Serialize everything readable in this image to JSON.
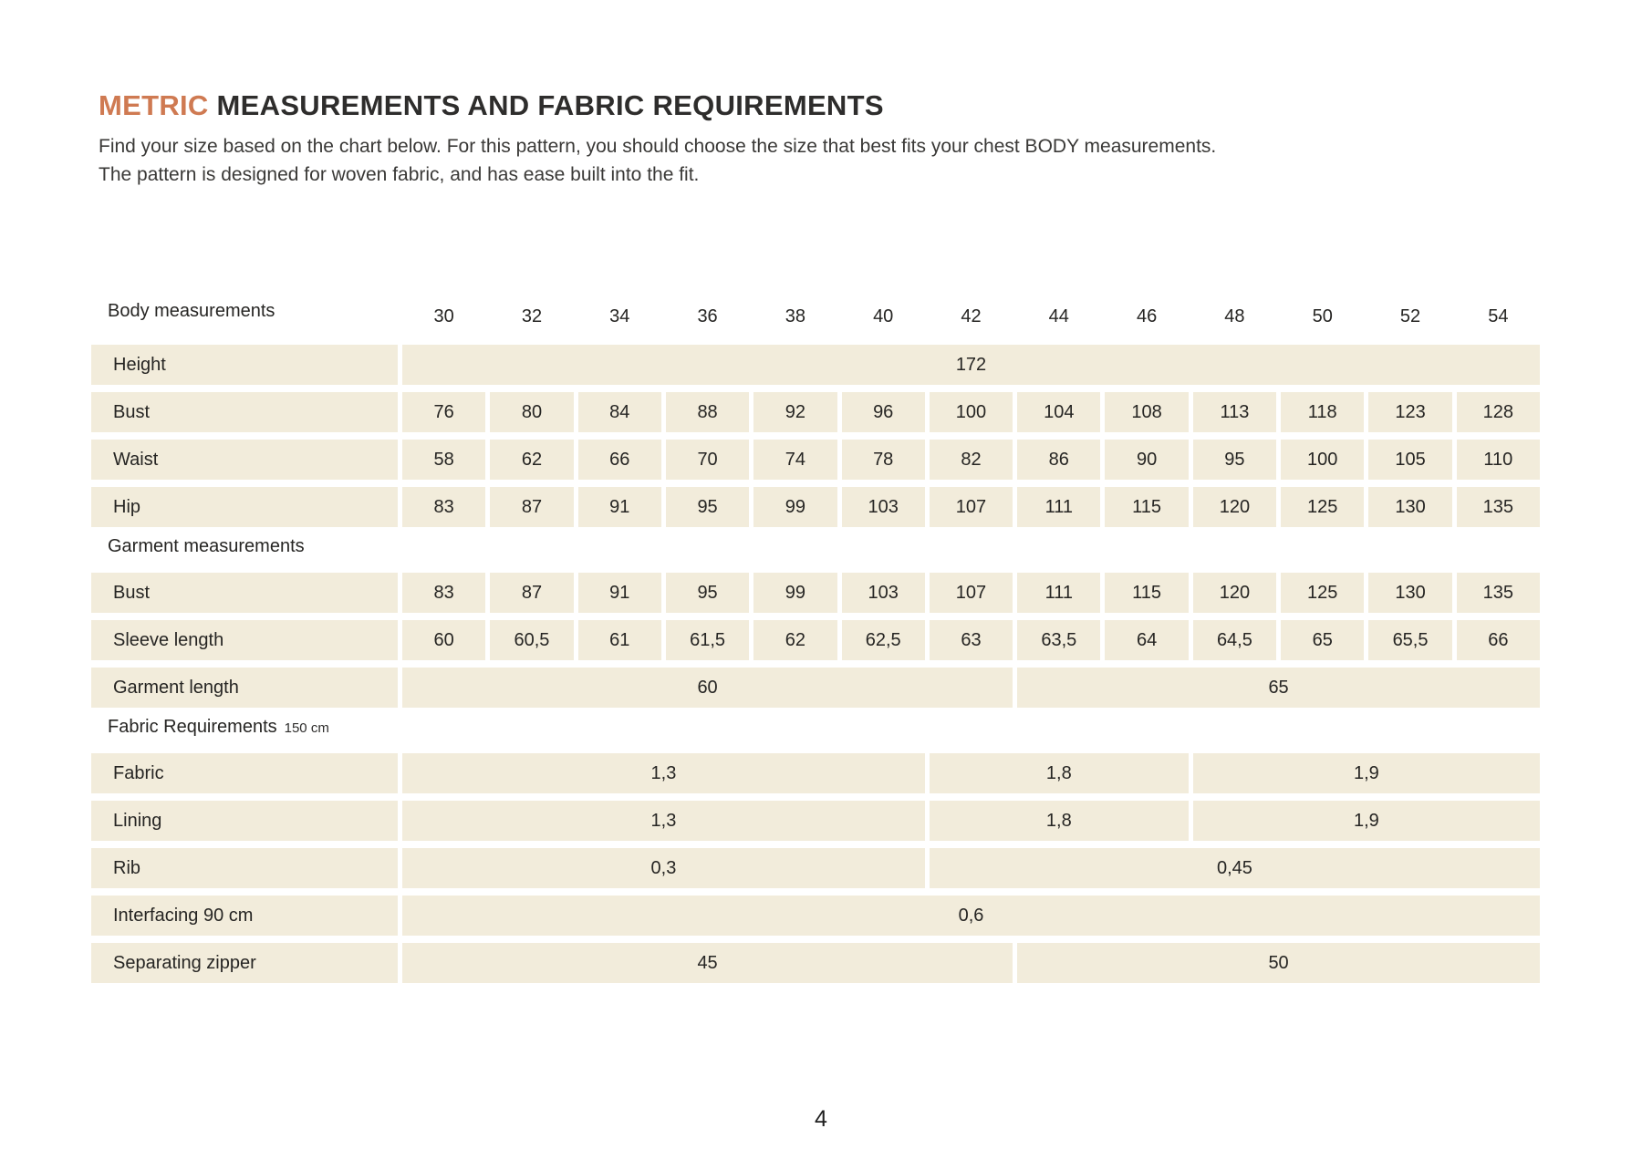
{
  "colors": {
    "accent": "#cf7a52",
    "cell_bg": "#f2ecdb",
    "text": "#2e2d2c"
  },
  "header": {
    "title_highlight": "METRIC",
    "title_rest": " MEASUREMENTS AND FABRIC REQUIREMENTS",
    "intro_line1": "Find your size based on the chart below. For this pattern, you should choose the size that best fits your chest BODY measurements.",
    "intro_line2": "The pattern is designed for woven fabric, and has ease built into the fit."
  },
  "table": {
    "sizes": [
      "30",
      "32",
      "34",
      "36",
      "38",
      "40",
      "42",
      "44",
      "46",
      "48",
      "50",
      "52",
      "54"
    ],
    "sections": [
      {
        "header": "Body measurements",
        "header_suffix": "",
        "show_sizes": true,
        "rows": [
          {
            "label": "Height",
            "spans": [
              {
                "cols": 13,
                "value": "172"
              }
            ]
          },
          {
            "label": "Bust",
            "values": [
              "76",
              "80",
              "84",
              "88",
              "92",
              "96",
              "100",
              "104",
              "108",
              "113",
              "118",
              "123",
              "128"
            ]
          },
          {
            "label": "Waist",
            "values": [
              "58",
              "62",
              "66",
              "70",
              "74",
              "78",
              "82",
              "86",
              "90",
              "95",
              "100",
              "105",
              "110"
            ]
          },
          {
            "label": "Hip",
            "values": [
              "83",
              "87",
              "91",
              "95",
              "99",
              "103",
              "107",
              "111",
              "115",
              "120",
              "125",
              "130",
              "135"
            ]
          }
        ]
      },
      {
        "header": "Garment measurements",
        "header_suffix": "",
        "show_sizes": false,
        "rows": [
          {
            "label": "Bust",
            "values": [
              "83",
              "87",
              "91",
              "95",
              "99",
              "103",
              "107",
              "111",
              "115",
              "120",
              "125",
              "130",
              "135"
            ]
          },
          {
            "label": "Sleeve length",
            "values": [
              "60",
              "60,5",
              "61",
              "61,5",
              "62",
              "62,5",
              "63",
              "63,5",
              "64",
              "64,5",
              "65",
              "65,5",
              "66"
            ]
          },
          {
            "label": "Garment length",
            "spans": [
              {
                "cols": 7,
                "value": "60"
              },
              {
                "cols": 6,
                "value": "65"
              }
            ]
          }
        ]
      },
      {
        "header": "Fabric Requirements",
        "header_suffix": "150 cm",
        "show_sizes": false,
        "rows": [
          {
            "label": "Fabric",
            "spans": [
              {
                "cols": 6,
                "value": "1,3"
              },
              {
                "cols": 3,
                "value": "1,8"
              },
              {
                "cols": 4,
                "value": "1,9"
              }
            ]
          },
          {
            "label": "Lining",
            "spans": [
              {
                "cols": 6,
                "value": "1,3"
              },
              {
                "cols": 3,
                "value": "1,8"
              },
              {
                "cols": 4,
                "value": "1,9"
              }
            ]
          },
          {
            "label": "Rib",
            "spans": [
              {
                "cols": 6,
                "value": "0,3"
              },
              {
                "cols": 7,
                "value": "0,45"
              }
            ]
          },
          {
            "label": "Interfacing 90 cm",
            "spans": [
              {
                "cols": 13,
                "value": "0,6"
              }
            ]
          },
          {
            "label": "Separating zipper",
            "spans": [
              {
                "cols": 7,
                "value": "45"
              },
              {
                "cols": 6,
                "value": "50"
              }
            ]
          }
        ]
      }
    ]
  },
  "footer": {
    "page_number": "4"
  }
}
